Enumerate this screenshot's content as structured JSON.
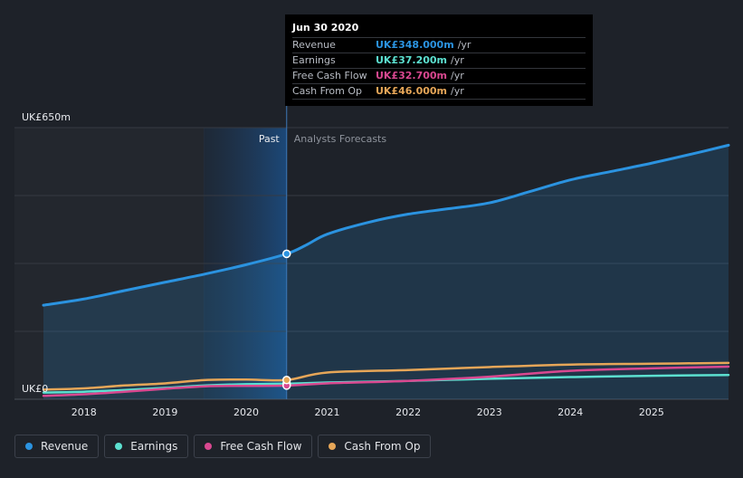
{
  "chart_data": {
    "type": "line",
    "title": "",
    "currency_axis_top": "UK£650m",
    "currency_axis_bottom": "UK£0",
    "ylim": [
      0,
      650
    ],
    "xlim": [
      2017.45,
      2025.95
    ],
    "x_ticks": [
      "2018",
      "2019",
      "2020",
      "2021",
      "2022",
      "2023",
      "2024",
      "2025"
    ],
    "x_tick_values": [
      2018,
      2019,
      2020,
      2021,
      2022,
      2023,
      2024,
      2025
    ],
    "past_label": "Past",
    "forecast_label": "Analysts Forecasts",
    "divider_x": 2020.5,
    "series": [
      {
        "name": "Revenue",
        "color": "#2b93e0",
        "x": [
          2017.5,
          2018.0,
          2018.5,
          2019.0,
          2019.5,
          2020.0,
          2020.5,
          2020.75,
          2021.0,
          2021.5,
          2022.0,
          2022.5,
          2023.0,
          2023.5,
          2024.0,
          2024.5,
          2025.0,
          2025.5,
          2025.95
        ],
        "values": [
          225,
          240,
          260,
          280,
          300,
          322,
          348,
          370,
          395,
          423,
          443,
          456,
          470,
          497,
          525,
          545,
          565,
          587,
          608
        ]
      },
      {
        "name": "Earnings",
        "color": "#5ce0d0",
        "x": [
          2017.5,
          2018.0,
          2018.5,
          2019.0,
          2019.5,
          2020.0,
          2020.5,
          2021.0,
          2022.0,
          2023.0,
          2024.0,
          2025.0,
          2025.95
        ],
        "values": [
          16,
          18,
          22,
          27,
          33,
          36,
          37.2,
          40,
          44,
          49,
          53,
          56,
          58
        ]
      },
      {
        "name": "Free Cash Flow",
        "color": "#d94890",
        "x": [
          2017.5,
          2018.0,
          2018.5,
          2019.0,
          2019.5,
          2020.0,
          2020.5,
          2021.0,
          2022.0,
          2023.0,
          2024.0,
          2025.0,
          2025.95
        ],
        "values": [
          8,
          12,
          18,
          25,
          31,
          32,
          32.7,
          38,
          44,
          54,
          68,
          74,
          78
        ]
      },
      {
        "name": "Cash From Op",
        "color": "#e6a658",
        "x": [
          2017.5,
          2018.0,
          2018.5,
          2019.0,
          2019.5,
          2020.0,
          2020.5,
          2021.0,
          2022.0,
          2023.0,
          2024.0,
          2025.0,
          2025.95
        ],
        "values": [
          23,
          26,
          33,
          38,
          46,
          47,
          46,
          64,
          70,
          77,
          83,
          85,
          87
        ]
      }
    ],
    "highlight_x": 2020.5,
    "tooltip": {
      "date": "Jun 30 2020",
      "rows": [
        {
          "label": "Revenue",
          "value": "UK£348.000m",
          "unit": "/yr",
          "color": "#2b93e0"
        },
        {
          "label": "Earnings",
          "value": "UK£37.200m",
          "unit": "/yr",
          "color": "#5ce0d0"
        },
        {
          "label": "Free Cash Flow",
          "value": "UK£32.700m",
          "unit": "/yr",
          "color": "#d94890"
        },
        {
          "label": "Cash From Op",
          "value": "UK£46.000m",
          "unit": "/yr",
          "color": "#e6a658"
        }
      ]
    }
  },
  "legend": {
    "items": [
      {
        "label": "Revenue",
        "color": "#2b93e0"
      },
      {
        "label": "Earnings",
        "color": "#5ce0d0"
      },
      {
        "label": "Free Cash Flow",
        "color": "#d94890"
      },
      {
        "label": "Cash From Op",
        "color": "#e6a658"
      }
    ]
  }
}
